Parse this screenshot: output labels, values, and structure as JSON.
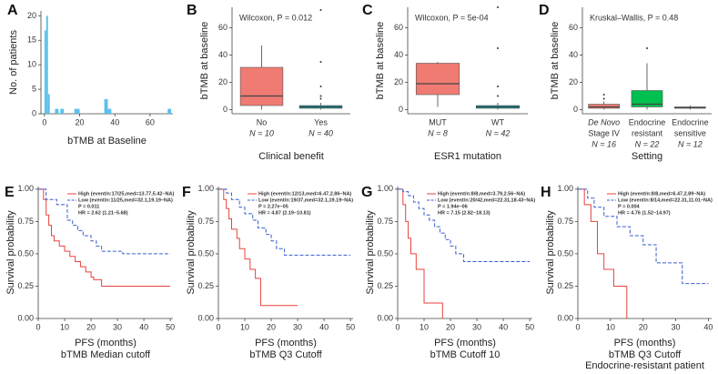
{
  "chart_data": [
    {
      "type": "histogram",
      "panel": "A",
      "xlabel": "bTMB at Baseline",
      "ylabel": "No. of patients",
      "color": "#5bc0eb",
      "bins": [
        0,
        1,
        2,
        3,
        6,
        8,
        9,
        11,
        17,
        20,
        34,
        36,
        38,
        70,
        72
      ],
      "values": [
        17,
        20,
        4,
        0,
        1,
        0,
        1,
        0,
        1,
        0,
        3,
        1,
        0,
        1
      ],
      "xlim": [
        -2,
        73
      ],
      "xticks": [
        0,
        20,
        40,
        60
      ],
      "ylim": [
        0,
        21
      ],
      "yticks": [
        0,
        5,
        10,
        15,
        20
      ]
    },
    {
      "type": "box",
      "panel": "B",
      "annotation": "Wilcoxon, P = 0.012",
      "xlabel": "Clinical benefit",
      "ylabel": "bTMB at baseline",
      "categories": [
        [
          "No"
        ],
        [
          "Yes"
        ]
      ],
      "n_labels": [
        "N = 10",
        "N = 40"
      ],
      "boxes": [
        {
          "color": "#f07b72",
          "whisker_low": 0,
          "q1": 3,
          "median": 10,
          "q3": 31,
          "whisker_high": 47,
          "outliers": []
        },
        {
          "color": "#00a5ad",
          "whisker_low": 0,
          "q1": 1,
          "median": 2,
          "q3": 3,
          "whisker_high": 5,
          "outliers": [
            8,
            10,
            17,
            35,
            73
          ]
        }
      ],
      "ylim": [
        -3,
        75
      ],
      "yticks": [
        0,
        20,
        40,
        60
      ]
    },
    {
      "type": "box",
      "panel": "C",
      "annotation": "Wilcoxon, P = 5e-04",
      "xlabel": "ESR1 mutation",
      "ylabel": "bTMB at baseline",
      "categories": [
        [
          "MUT"
        ],
        [
          "WT"
        ]
      ],
      "n_labels": [
        "N = 8",
        "N = 42"
      ],
      "boxes": [
        {
          "color": "#f07b72",
          "whisker_low": 2,
          "q1": 11,
          "median": 19,
          "q3": 34,
          "whisker_high": 35,
          "outliers": []
        },
        {
          "color": "#00a5ad",
          "whisker_low": 0,
          "q1": 1,
          "median": 2,
          "q3": 3,
          "whisker_high": 5,
          "outliers": [
            10,
            17,
            45,
            75
          ]
        }
      ],
      "ylim": [
        -3,
        75
      ],
      "yticks": [
        0,
        20,
        40,
        60
      ]
    },
    {
      "type": "box",
      "panel": "D",
      "annotation": "Kruskal–Wallis, P = 0.48",
      "xlabel": "Setting",
      "ylabel": "bTMB at baseline",
      "categories": [
        [
          "De Novo",
          "Stage IV"
        ],
        [
          "Endocrine",
          "resistant"
        ],
        [
          "Endocrine",
          "sensitive"
        ]
      ],
      "n_labels": [
        "N = 16",
        "N = 22",
        "N = 12"
      ],
      "boxes": [
        {
          "color": "#f07b72",
          "whisker_low": 0,
          "q1": 1,
          "median": 2,
          "q3": 4,
          "whisker_high": 6,
          "outliers": [
            8,
            11
          ]
        },
        {
          "color": "#00c050",
          "whisker_low": 0,
          "q1": 2,
          "median": 4,
          "q3": 14,
          "whisker_high": 34,
          "outliers": [
            45
          ]
        },
        {
          "color": "#3f7fd0",
          "whisker_low": 0,
          "q1": 1,
          "median": 1.5,
          "q3": 2,
          "whisker_high": 3,
          "outliers": []
        }
      ],
      "ylim": [
        -3,
        75
      ],
      "yticks": [
        0,
        20,
        40,
        60
      ]
    },
    {
      "type": "survival",
      "panel": "E",
      "xlabel": "PFS (months)",
      "subtitle": [
        "bTMB Median cutoff"
      ],
      "ylabel": "Survival probability",
      "series": [
        {
          "name": "High (event/n:17/25,med=13.77,5.42–NA)",
          "color": "#e8433c",
          "x": [
            0,
            2,
            3,
            4,
            5,
            6,
            8,
            10,
            12,
            14,
            16,
            18,
            20,
            21,
            24,
            50
          ],
          "values": [
            1,
            0.92,
            0.8,
            0.72,
            0.64,
            0.6,
            0.56,
            0.52,
            0.48,
            0.44,
            0.4,
            0.36,
            0.32,
            0.3,
            0.25,
            0.25
          ]
        },
        {
          "name": "Low (event/n:11/25,med=32.1,19.19–NA)",
          "color": "#3a5fcd",
          "x": [
            0,
            3,
            7,
            11,
            13,
            15,
            17,
            20,
            22,
            24,
            32,
            50
          ],
          "values": [
            1,
            0.92,
            0.88,
            0.76,
            0.72,
            0.68,
            0.64,
            0.6,
            0.56,
            0.52,
            0.5,
            0.5
          ]
        }
      ],
      "annotations": [
        "P = 0.011",
        "HR = 2.62 (1.21–5.68)"
      ],
      "xlim": [
        0,
        51
      ],
      "xticks": [
        0,
        10,
        20,
        30,
        40,
        50
      ],
      "ylim": [
        0,
        1.02
      ],
      "yticks": [
        {
          "value": 0,
          "label": "0.00"
        },
        {
          "value": 0.25,
          "label": "0.25"
        },
        {
          "value": 0.5,
          "label": "0.50"
        },
        {
          "value": 0.75,
          "label": "0.75"
        },
        {
          "value": 1,
          "label": "1.00"
        }
      ]
    },
    {
      "type": "survival",
      "panel": "F",
      "xlabel": "PFS (months)",
      "subtitle": [
        "bTMB Q3 Cutoff"
      ],
      "ylabel": "Survival probability",
      "series": [
        {
          "name": "High (event/n:12/13,med=6.47,2.86–NA)",
          "color": "#e8433c",
          "x": [
            0,
            2,
            3,
            4,
            5,
            7,
            8,
            10,
            12,
            14,
            16,
            30
          ],
          "values": [
            1,
            0.92,
            0.85,
            0.77,
            0.69,
            0.62,
            0.54,
            0.46,
            0.38,
            0.31,
            0.1,
            0.1
          ]
        },
        {
          "name": "Low (event/n:19/37,med=32.1,19.19–NA)",
          "color": "#3a5fcd",
          "x": [
            0,
            3,
            5,
            8,
            10,
            13,
            15,
            18,
            20,
            22,
            25,
            50
          ],
          "values": [
            1,
            0.97,
            0.92,
            0.86,
            0.81,
            0.76,
            0.7,
            0.65,
            0.6,
            0.54,
            0.49,
            0.49
          ]
        }
      ],
      "annotations": [
        "P = 2.27e–05",
        "HR = 4.87 (2.19–10.81)"
      ],
      "xlim": [
        0,
        51
      ],
      "xticks": [
        0,
        10,
        20,
        30,
        40,
        50
      ],
      "ylim": [
        0,
        1.02
      ],
      "yticks": [
        {
          "value": 0,
          "label": "0.00"
        },
        {
          "value": 0.25,
          "label": "0.25"
        },
        {
          "value": 0.5,
          "label": "0.50"
        },
        {
          "value": 0.75,
          "label": "0.75"
        },
        {
          "value": 1,
          "label": "1.00"
        }
      ]
    },
    {
      "type": "survival",
      "panel": "G",
      "xlabel": "PFS (months)",
      "subtitle": [
        "bTMB Cutoff 10"
      ],
      "ylabel": "Survival probability",
      "series": [
        {
          "name": "High (event/n:8/8,med=3.79,2.56–NA)",
          "color": "#e8433c",
          "x": [
            0,
            2,
            3,
            4,
            5,
            7,
            10,
            17
          ],
          "values": [
            1,
            0.88,
            0.75,
            0.62,
            0.5,
            0.38,
            0.12,
            0
          ]
        },
        {
          "name": "Low (event/n:20/42,med=22.31,18.43–NA)",
          "color": "#3a5fcd",
          "x": [
            0,
            2,
            4,
            6,
            8,
            10,
            12,
            14,
            16,
            18,
            20,
            22,
            25,
            50
          ],
          "values": [
            1,
            0.98,
            0.95,
            0.9,
            0.85,
            0.8,
            0.76,
            0.71,
            0.66,
            0.61,
            0.56,
            0.5,
            0.44,
            0.44
          ]
        }
      ],
      "annotations": [
        "P = 1.94e–06",
        "HR = 7.15 (2.82–18.13)"
      ],
      "xlim": [
        0,
        51
      ],
      "xticks": [
        0,
        10,
        20,
        30,
        40,
        50
      ],
      "ylim": [
        0,
        1.02
      ],
      "yticks": [
        {
          "value": 0,
          "label": "0.00"
        },
        {
          "value": 0.25,
          "label": "0.25"
        },
        {
          "value": 0.5,
          "label": "0.50"
        },
        {
          "value": 0.75,
          "label": "0.75"
        },
        {
          "value": 1,
          "label": "1.00"
        }
      ]
    },
    {
      "type": "survival",
      "panel": "H",
      "xlabel": "PFS (months)",
      "subtitle": [
        "bTMB Q3 Cutoff",
        "Endocrine-resistant patient"
      ],
      "ylabel": "Survival probability",
      "series": [
        {
          "name": "High (event/n:8/8,med=6.47,2.89–NA)",
          "color": "#e8433c",
          "x": [
            0,
            2,
            4,
            6,
            8,
            11,
            15
          ],
          "values": [
            1,
            0.88,
            0.75,
            0.5,
            0.38,
            0.25,
            0
          ]
        },
        {
          "name": "Low (event/n:8/14,med=22.31,11.01–NA)",
          "color": "#3a5fcd",
          "x": [
            0,
            3,
            5,
            8,
            12,
            16,
            20,
            24,
            32,
            40
          ],
          "values": [
            1,
            0.93,
            0.86,
            0.79,
            0.71,
            0.64,
            0.57,
            0.43,
            0.27,
            0.27
          ]
        }
      ],
      "annotations": [
        "P = 0.004",
        "HR = 4.76 (1.52–14.97)"
      ],
      "xlim": [
        0,
        41
      ],
      "xticks": [
        0,
        10,
        20,
        30,
        40
      ],
      "ylim": [
        0,
        1.02
      ],
      "yticks": [
        {
          "value": 0,
          "label": "0.00"
        },
        {
          "value": 0.25,
          "label": "0.25"
        },
        {
          "value": 0.5,
          "label": "0.50"
        },
        {
          "value": 0.75,
          "label": "0.75"
        },
        {
          "value": 1,
          "label": "1.00"
        }
      ]
    }
  ]
}
